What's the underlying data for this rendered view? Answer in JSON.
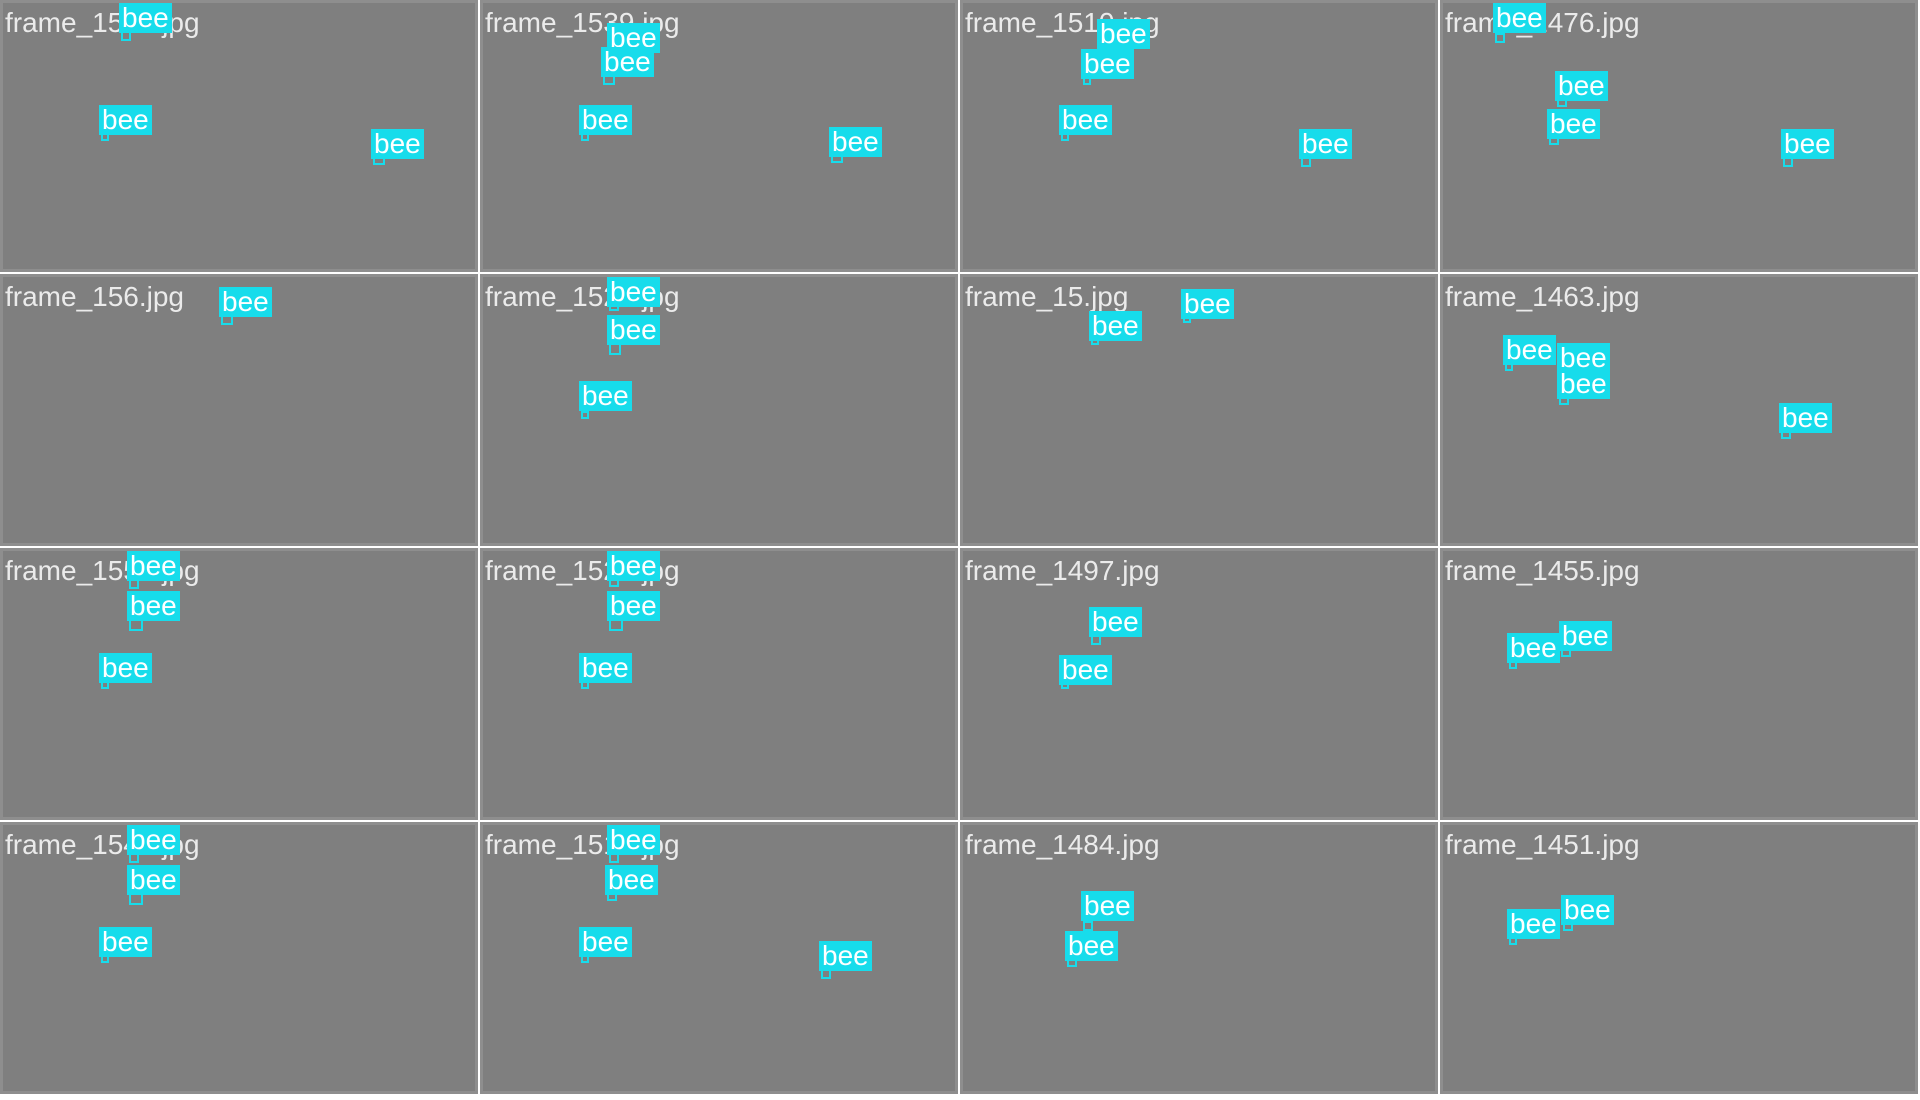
{
  "colors": {
    "accent": "#17dceb",
    "tile_bg": "#7f7f7f",
    "filename_text": "#ebebeb",
    "separator": "#ffffff"
  },
  "tiles": [
    {
      "filename": "frame_1566.jpg",
      "detections": [
        {
          "label": "bee"
        },
        {
          "label": "bee"
        },
        {
          "label": "bee"
        }
      ]
    },
    {
      "filename": "frame_1539.jpg",
      "detections": [
        {
          "label": "bee"
        },
        {
          "label": "bee"
        },
        {
          "label": "bee"
        },
        {
          "label": "bee"
        }
      ]
    },
    {
      "filename": "frame_1510.jpg",
      "detections": [
        {
          "label": "bee"
        },
        {
          "label": "bee"
        },
        {
          "label": "bee"
        },
        {
          "label": "bee"
        }
      ]
    },
    {
      "filename": "frame_1476.jpg",
      "detections": [
        {
          "label": "bee"
        },
        {
          "label": "bee"
        },
        {
          "label": "bee"
        },
        {
          "label": "bee"
        }
      ]
    },
    {
      "filename": "frame_156.jpg",
      "detections": [
        {
          "label": "bee"
        }
      ]
    },
    {
      "filename": "frame_1529.jpg",
      "detections": [
        {
          "label": "bee"
        },
        {
          "label": "bee"
        },
        {
          "label": "bee"
        }
      ]
    },
    {
      "filename": "frame_15.jpg",
      "detections": [
        {
          "label": "bee"
        },
        {
          "label": "bee"
        }
      ]
    },
    {
      "filename": "frame_1463.jpg",
      "detections": [
        {
          "label": "bee"
        },
        {
          "label": "bee"
        },
        {
          "label": "bee"
        },
        {
          "label": "bee"
        }
      ]
    },
    {
      "filename": "frame_1553.jpg",
      "detections": [
        {
          "label": "bee"
        },
        {
          "label": "bee"
        },
        {
          "label": "bee"
        }
      ]
    },
    {
      "filename": "frame_1526.jpg",
      "detections": [
        {
          "label": "bee"
        },
        {
          "label": "bee"
        },
        {
          "label": "bee"
        }
      ]
    },
    {
      "filename": "frame_1497.jpg",
      "detections": [
        {
          "label": "bee"
        },
        {
          "label": "bee"
        }
      ]
    },
    {
      "filename": "frame_1455.jpg",
      "detections": [
        {
          "label": "bee"
        },
        {
          "label": "bee"
        }
      ]
    },
    {
      "filename": "frame_1548.jpg",
      "detections": [
        {
          "label": "bee"
        },
        {
          "label": "bee"
        },
        {
          "label": "bee"
        }
      ]
    },
    {
      "filename": "frame_1517.jpg",
      "detections": [
        {
          "label": "bee"
        },
        {
          "label": "bee"
        },
        {
          "label": "bee"
        },
        {
          "label": "bee"
        }
      ]
    },
    {
      "filename": "frame_1484.jpg",
      "detections": [
        {
          "label": "bee"
        },
        {
          "label": "bee"
        }
      ]
    },
    {
      "filename": "frame_1451.jpg",
      "detections": [
        {
          "label": "bee"
        },
        {
          "label": "bee"
        }
      ]
    }
  ]
}
